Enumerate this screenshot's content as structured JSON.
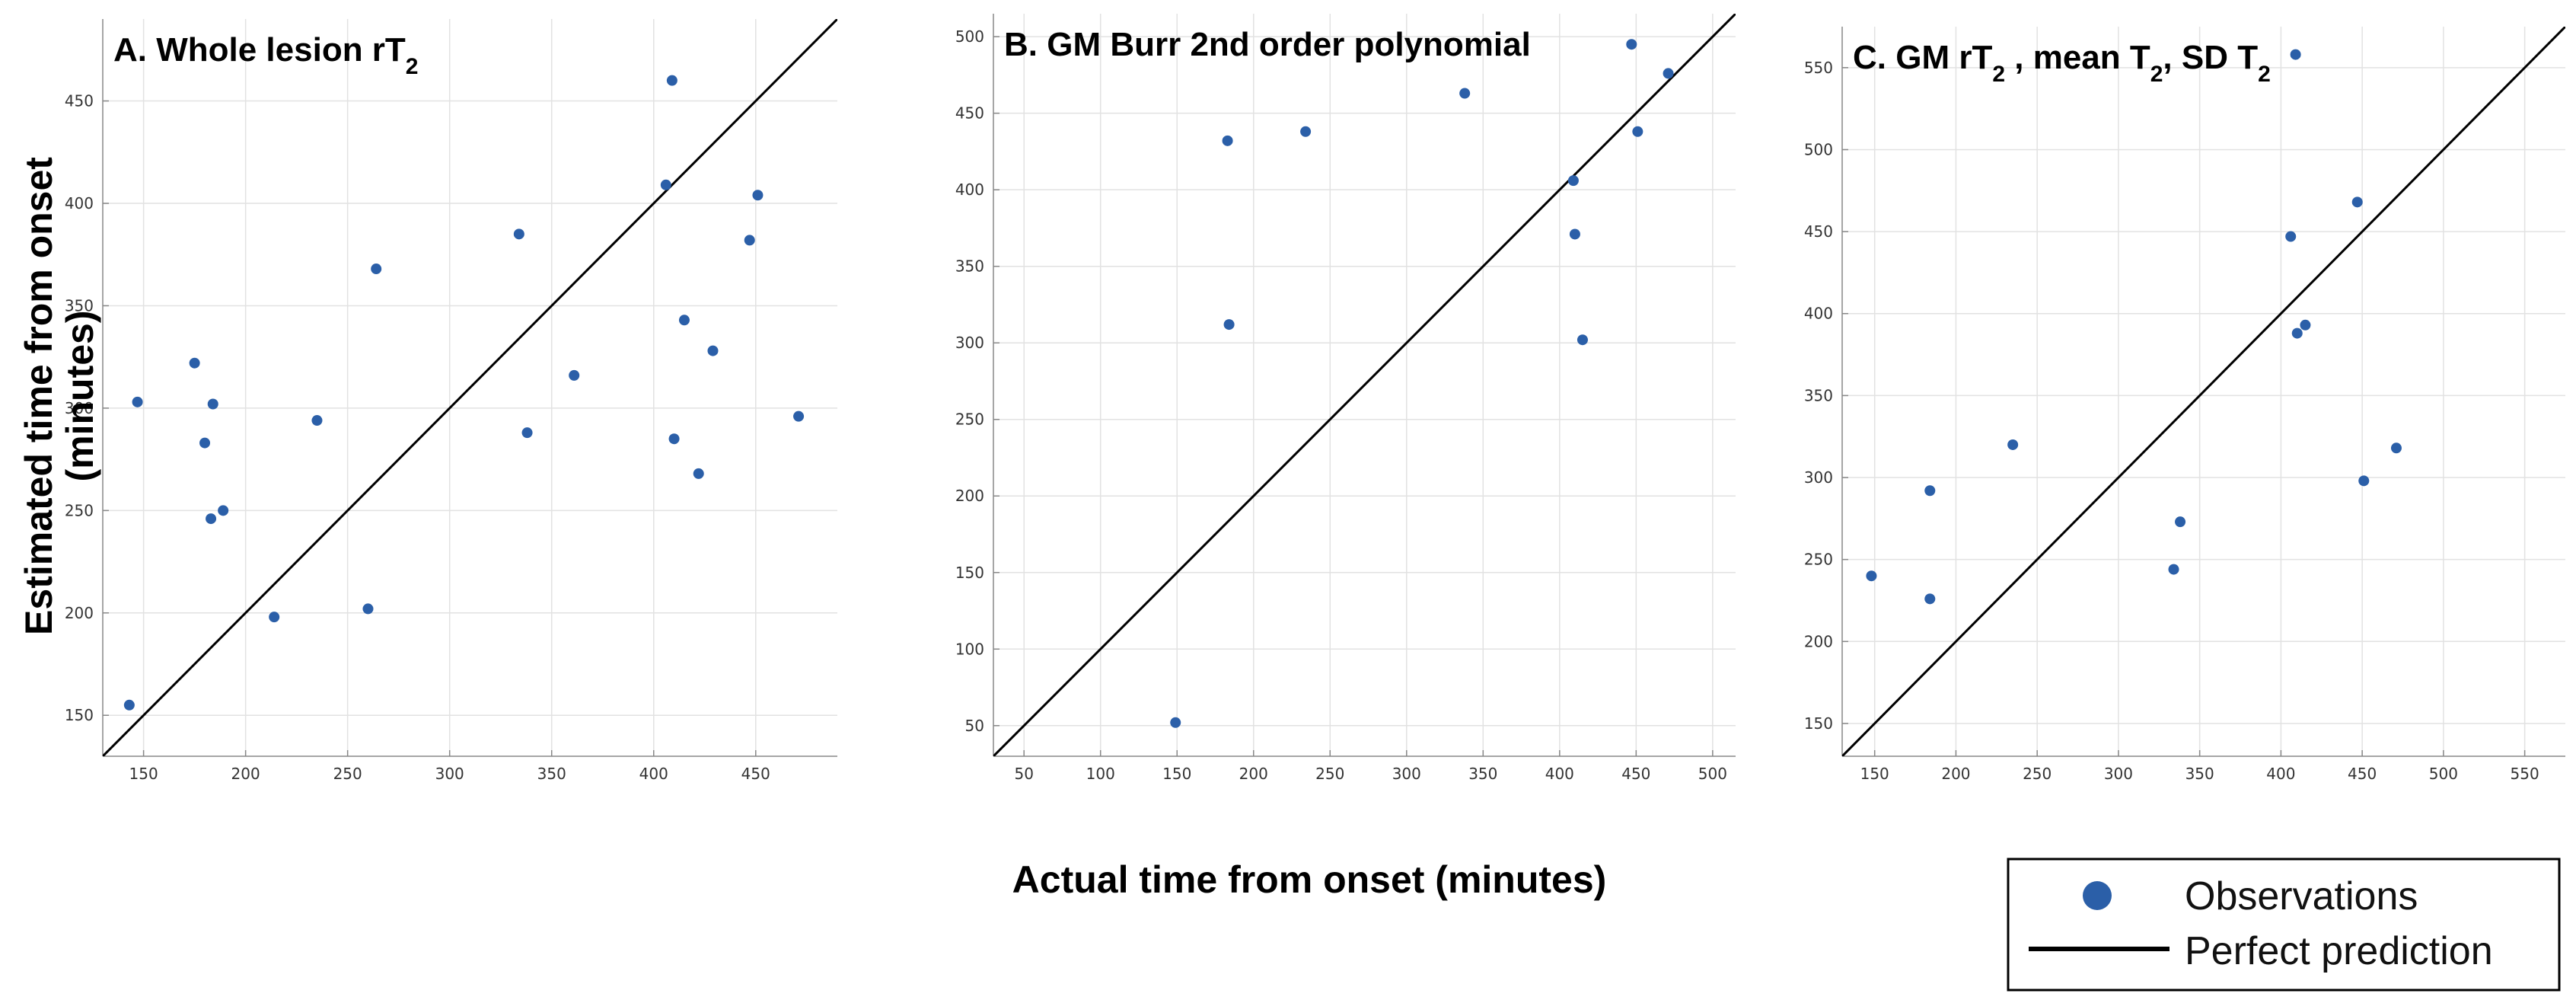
{
  "figure": {
    "ylabel_line1": "Estimated time from onset",
    "ylabel_line2": "(minutes)",
    "xlabel": "Actual time from onset (minutes)",
    "marker_color": "#2b5fa8",
    "line_color": "#000000",
    "grid_color": "#e2e2e2",
    "legend": {
      "observations": "Observations",
      "perfect": "Perfect prediction",
      "placement": "bottom-right"
    }
  },
  "chart_data": [
    {
      "type": "scatter",
      "title": "A. Whole lesion rT",
      "title_sub": "2",
      "title_rest": "",
      "xlim": [
        130,
        490
      ],
      "ylim": [
        130,
        490
      ],
      "xticks": [
        150,
        200,
        250,
        300,
        350,
        400,
        450
      ],
      "yticks": [
        150,
        200,
        250,
        300,
        350,
        400,
        450
      ],
      "grid": true,
      "reference_line": "y = x",
      "points": [
        [
          143,
          155
        ],
        [
          147,
          303
        ],
        [
          175,
          322
        ],
        [
          180,
          283
        ],
        [
          184,
          302
        ],
        [
          183,
          246
        ],
        [
          189,
          250
        ],
        [
          214,
          198
        ],
        [
          235,
          294
        ],
        [
          260,
          202
        ],
        [
          264,
          368
        ],
        [
          334,
          385
        ],
        [
          338,
          288
        ],
        [
          361,
          316
        ],
        [
          406,
          409
        ],
        [
          409,
          460
        ],
        [
          410,
          285
        ],
        [
          415,
          343
        ],
        [
          422,
          268
        ],
        [
          429,
          328
        ],
        [
          447,
          382
        ],
        [
          451,
          404
        ],
        [
          471,
          296
        ]
      ]
    },
    {
      "type": "scatter",
      "title": "B. GM Burr 2nd order polynomial",
      "title_sub": "",
      "title_rest": "",
      "xlim": [
        30,
        515
      ],
      "ylim": [
        30,
        515
      ],
      "xticks": [
        50,
        100,
        150,
        200,
        250,
        300,
        350,
        400,
        450,
        500
      ],
      "yticks": [
        50,
        100,
        150,
        200,
        250,
        300,
        350,
        400,
        450,
        500
      ],
      "grid": true,
      "reference_line": "y = x",
      "points": [
        [
          149,
          52
        ],
        [
          183,
          432
        ],
        [
          184,
          312
        ],
        [
          234,
          438
        ],
        [
          338,
          463
        ],
        [
          409,
          406
        ],
        [
          410,
          371
        ],
        [
          415,
          302
        ],
        [
          447,
          495
        ],
        [
          451,
          438
        ],
        [
          471,
          476
        ]
      ]
    },
    {
      "type": "scatter",
      "title": "C. GM rT",
      "title_sub": "2",
      "title_rest": " , mean T",
      "title_sub2": "2",
      "title_rest2": ", SD T",
      "title_sub3": "2",
      "xlim": [
        130,
        575
      ],
      "ylim": [
        130,
        575
      ],
      "xticks": [
        150,
        200,
        250,
        300,
        350,
        400,
        450,
        500,
        550
      ],
      "yticks": [
        150,
        200,
        250,
        300,
        350,
        400,
        450,
        500,
        550
      ],
      "grid": true,
      "reference_line": "y = x",
      "points": [
        [
          148,
          240
        ],
        [
          184,
          292
        ],
        [
          184,
          226
        ],
        [
          235,
          320
        ],
        [
          334,
          244
        ],
        [
          338,
          273
        ],
        [
          406,
          447
        ],
        [
          410,
          388
        ],
        [
          409,
          558
        ],
        [
          415,
          393
        ],
        [
          447,
          468
        ],
        [
          451,
          298
        ],
        [
          471,
          318
        ]
      ]
    }
  ]
}
